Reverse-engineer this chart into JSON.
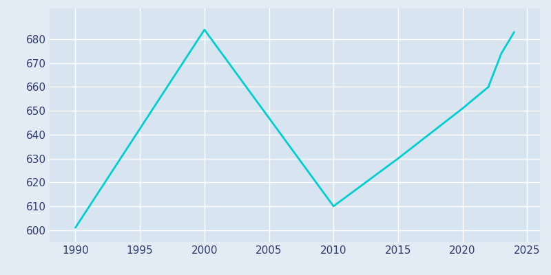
{
  "years": [
    1990,
    2000,
    2010,
    2015,
    2020,
    2022,
    2023,
    2024
  ],
  "population": [
    601,
    684,
    610,
    630,
    651,
    660,
    674,
    683
  ],
  "line_color": "#00CED1",
  "bg_color": "#E3EBF5",
  "plot_bg_color": "#D8E5F0",
  "grid_color": "#FFFFFF",
  "tick_label_color": "#2F3B6E",
  "xlim": [
    1988,
    2026
  ],
  "ylim": [
    595,
    693
  ],
  "xticks": [
    1990,
    1995,
    2000,
    2005,
    2010,
    2015,
    2020,
    2025
  ],
  "yticks": [
    600,
    610,
    620,
    630,
    640,
    650,
    660,
    670,
    680
  ],
  "line_width": 2.0,
  "figsize": [
    8.0,
    4.0
  ],
  "dpi": 100
}
